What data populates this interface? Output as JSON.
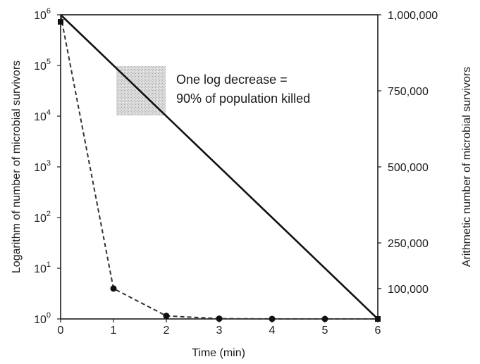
{
  "chart_data": {
    "type": "line",
    "xlabel": "Time (min)",
    "ylabel_left": "Logarithm of number of microbial survivors",
    "ylabel_right": "Arithmetic number of microbial survivors",
    "xlim": [
      0,
      6
    ],
    "ylim_log_exponent": [
      0,
      6
    ],
    "x_ticks": [
      "0",
      "1",
      "2",
      "3",
      "4",
      "5",
      "6"
    ],
    "y_left_ticks": [
      {
        "base": "10",
        "exp": "0",
        "value": 0
      },
      {
        "base": "10",
        "exp": "1",
        "value": 1
      },
      {
        "base": "10",
        "exp": "2",
        "value": 2
      },
      {
        "base": "10",
        "exp": "3",
        "value": 3
      },
      {
        "base": "10",
        "exp": "4",
        "value": 4
      },
      {
        "base": "10",
        "exp": "5",
        "value": 5
      },
      {
        "base": "10",
        "exp": "6",
        "value": 6
      }
    ],
    "y_right_ticks": [
      {
        "label": "1,000,000",
        "value": 1000000
      },
      {
        "label": "750,000",
        "value": 750000
      },
      {
        "label": "500,000",
        "value": 500000
      },
      {
        "label": "250,000",
        "value": 250000
      },
      {
        "label": "100,000",
        "value": 100000
      }
    ],
    "series": [
      {
        "style": "solid",
        "scale": "log",
        "x": [
          0,
          6
        ],
        "y": [
          1000000,
          1
        ]
      },
      {
        "style": "dashed",
        "scale": "arithmetic",
        "x": [
          0,
          1,
          2,
          3,
          4,
          5,
          6
        ],
        "y": [
          1000000,
          100000,
          10000,
          1000,
          100,
          10,
          1
        ]
      }
    ],
    "annotation": {
      "lines": [
        "One log decrease =",
        "90% of population killed"
      ]
    },
    "colors": {
      "line": "#111111",
      "shaded_box": "#bdbdbd"
    }
  }
}
